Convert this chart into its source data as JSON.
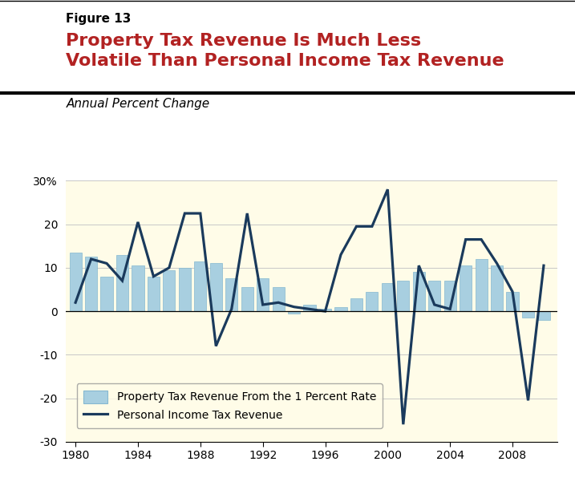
{
  "years": [
    1980,
    1981,
    1982,
    1983,
    1984,
    1985,
    1986,
    1987,
    1988,
    1989,
    1990,
    1991,
    1992,
    1993,
    1994,
    1995,
    1996,
    1997,
    1998,
    1999,
    2000,
    2001,
    2002,
    2003,
    2004,
    2005,
    2006,
    2007,
    2008,
    2009,
    2010
  ],
  "property_tax": [
    13.5,
    12.5,
    8.0,
    13.0,
    10.5,
    8.0,
    9.5,
    10.0,
    11.5,
    11.0,
    7.5,
    5.5,
    7.5,
    5.5,
    -0.5,
    1.5,
    0.5,
    1.0,
    3.0,
    4.5,
    6.5,
    7.0,
    9.0,
    7.0,
    7.0,
    10.5,
    12.0,
    10.5,
    4.5,
    -1.5,
    -2.0
  ],
  "personal_income_tax": [
    2.0,
    12.0,
    11.0,
    7.0,
    20.5,
    8.0,
    10.0,
    22.5,
    22.5,
    -8.0,
    0.5,
    22.5,
    1.5,
    2.0,
    1.0,
    0.5,
    0.0,
    13.0,
    19.5,
    19.5,
    28.0,
    -26.0,
    10.5,
    1.5,
    0.5,
    16.5,
    16.5,
    11.0,
    4.5,
    -20.5,
    10.5
  ],
  "bar_color": "#a8cfe0",
  "line_color": "#1a3a5c",
  "chart_bg_color": "#fffce8",
  "header_bg_color": "#ffffff",
  "figure_bg_color": "#ffffff",
  "title_figure": "Figure 13",
  "title_main_line1": "Property Tax Revenue Is Much Less",
  "title_main_line2": "Volatile Than Personal Income Tax Revenue",
  "subtitle": "Annual Percent Change",
  "title_color": "#b22222",
  "figure_title_color": "#000000",
  "ylim": [
    -30,
    30
  ],
  "yticks": [
    -30,
    -20,
    -10,
    0,
    10,
    20,
    30
  ],
  "ytick_labels": [
    "-30",
    "-20",
    "-10",
    "0",
    "10",
    "20",
    "30%"
  ],
  "xlim_start": 1979.4,
  "xlim_end": 2010.9,
  "xtick_years": [
    1980,
    1984,
    1988,
    1992,
    1996,
    2000,
    2004,
    2008
  ],
  "legend_bar_label": "Property Tax Revenue From the 1 Percent Rate",
  "legend_line_label": "Personal Income Tax Revenue"
}
